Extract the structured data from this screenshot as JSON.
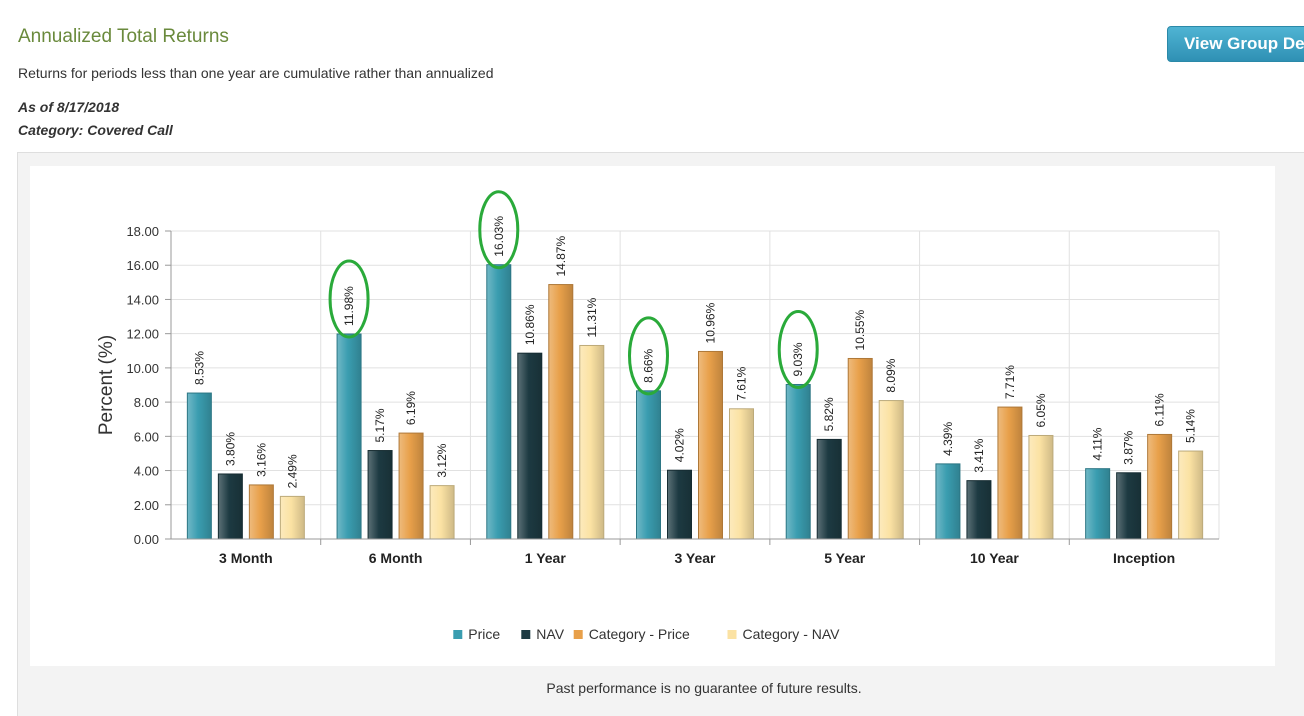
{
  "header": {
    "title": "Annualized Total Returns",
    "subtitle": "Returns for periods less than one year are cumulative rather than annualized",
    "as_of": "As of 8/17/2018",
    "category": "Category: Covered Call",
    "group_button_label": "View Group De"
  },
  "footer": {
    "disclaimer": "Past performance is no guarantee of future results."
  },
  "colors": {
    "title": "#6a8a3c",
    "button": "#3aa3c6",
    "annotation_circle": "#2aaa3a"
  },
  "chart_data": {
    "type": "bar",
    "categories": [
      "3 Month",
      "6 Month",
      "1 Year",
      "3 Year",
      "5 Year",
      "10 Year",
      "Inception"
    ],
    "series": [
      {
        "name": "Price",
        "color": "#3a9db0",
        "values": [
          8.53,
          11.98,
          16.03,
          8.66,
          9.03,
          4.39,
          4.11
        ],
        "labels": [
          "8.53%",
          "11.98%",
          "16.03%",
          "8.66%",
          "9.03%",
          "4.39%",
          "4.11%"
        ]
      },
      {
        "name": "NAV",
        "color": "#1d3a42",
        "values": [
          3.8,
          5.17,
          10.86,
          4.02,
          5.82,
          3.41,
          3.87
        ],
        "labels": [
          "3.80%",
          "5.17%",
          "10.86%",
          "4.02%",
          "5.82%",
          "3.41%",
          "3.87%"
        ]
      },
      {
        "name": "Category - Price",
        "color": "#e8a04a",
        "values": [
          3.16,
          6.19,
          14.87,
          10.96,
          10.55,
          7.71,
          6.11
        ],
        "labels": [
          "3.16%",
          "6.19%",
          "14.87%",
          "10.96%",
          "10.55%",
          "7.71%",
          "6.11%"
        ]
      },
      {
        "name": "Category - NAV",
        "color": "#fbe2a3",
        "values": [
          2.49,
          3.12,
          11.31,
          7.61,
          8.09,
          6.05,
          5.14
        ],
        "labels": [
          "2.49%",
          "3.12%",
          "11.31%",
          "7.61%",
          "8.09%",
          "6.05%",
          "5.14%"
        ]
      }
    ],
    "ylabel": "Percent (%)",
    "ylim": [
      0,
      18
    ],
    "yticks": [
      "0.00",
      "2.00",
      "4.00",
      "6.00",
      "8.00",
      "10.00",
      "12.00",
      "14.00",
      "16.00",
      "18.00"
    ],
    "grid": true,
    "legend_position": "bottom",
    "highlighted_bars": [
      {
        "category": "6 Month",
        "series": "Price"
      },
      {
        "category": "1 Year",
        "series": "Price"
      },
      {
        "category": "3 Year",
        "series": "Price"
      },
      {
        "category": "5 Year",
        "series": "Price"
      }
    ]
  }
}
